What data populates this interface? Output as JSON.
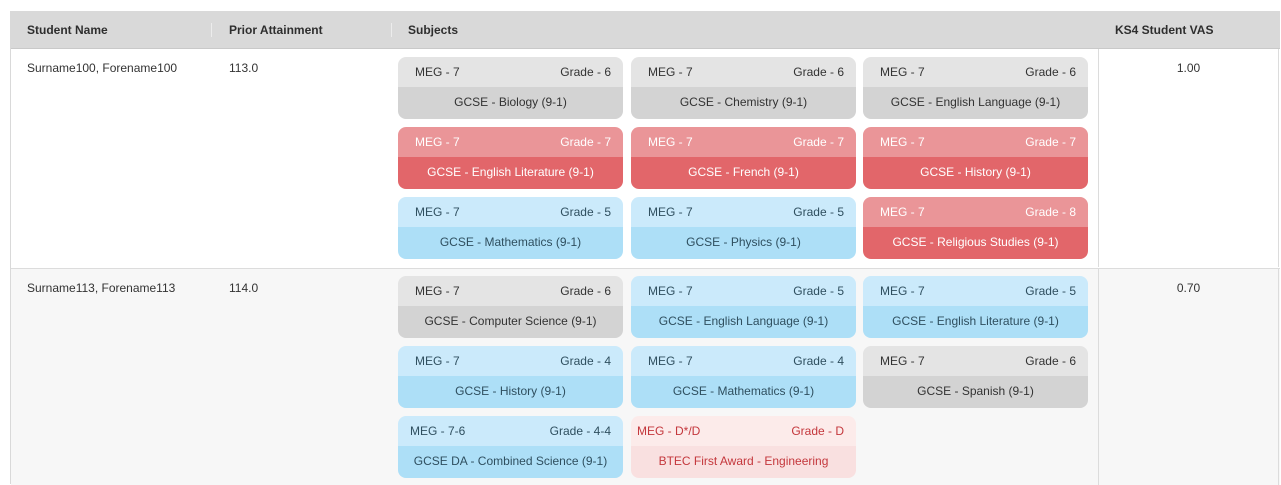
{
  "header": {
    "student_name": "Student Name",
    "prior_attainment": "Prior Attainment",
    "subjects": "Subjects",
    "ks4_vas": "KS4 Student VAS"
  },
  "students": [
    {
      "name": "Surname100, Forename100",
      "prior": "113.0",
      "vas": "1.00",
      "subjects": [
        {
          "meg": "MEG - 7",
          "grade": "Grade - 6",
          "name": "GCSE - Biology (9-1)",
          "status": "grey"
        },
        {
          "meg": "MEG - 7",
          "grade": "Grade - 6",
          "name": "GCSE - Chemistry (9-1)",
          "status": "grey"
        },
        {
          "meg": "MEG - 7",
          "grade": "Grade - 6",
          "name": "GCSE - English Language (9-1)",
          "status": "grey"
        },
        {
          "meg": "MEG - 7",
          "grade": "Grade - 7",
          "name": "GCSE - English Literature (9-1)",
          "status": "red"
        },
        {
          "meg": "MEG - 7",
          "grade": "Grade - 7",
          "name": "GCSE - French (9-1)",
          "status": "red"
        },
        {
          "meg": "MEG - 7",
          "grade": "Grade - 7",
          "name": "GCSE - History (9-1)",
          "status": "red"
        },
        {
          "meg": "MEG - 7",
          "grade": "Grade - 5",
          "name": "GCSE - Mathematics (9-1)",
          "status": "blue"
        },
        {
          "meg": "MEG - 7",
          "grade": "Grade - 5",
          "name": "GCSE - Physics (9-1)",
          "status": "blue"
        },
        {
          "meg": "MEG - 7",
          "grade": "Grade - 8",
          "name": "GCSE - Religious Studies (9-1)",
          "status": "red"
        }
      ]
    },
    {
      "name": "Surname113, Forename113",
      "prior": "114.0",
      "vas": "0.70",
      "subjects": [
        {
          "meg": "MEG - 7",
          "grade": "Grade - 6",
          "name": "GCSE - Computer Science (9-1)",
          "status": "grey"
        },
        {
          "meg": "MEG - 7",
          "grade": "Grade - 5",
          "name": "GCSE - English Language (9-1)",
          "status": "blue"
        },
        {
          "meg": "MEG - 7",
          "grade": "Grade - 5",
          "name": "GCSE - English Literature (9-1)",
          "status": "blue"
        },
        {
          "meg": "MEG - 7",
          "grade": "Grade - 4",
          "name": "GCSE - History (9-1)",
          "status": "blue"
        },
        {
          "meg": "MEG - 7",
          "grade": "Grade - 4",
          "name": "GCSE - Mathematics (9-1)",
          "status": "blue"
        },
        {
          "meg": "MEG - 7",
          "grade": "Grade - 6",
          "name": "GCSE - Spanish (9-1)",
          "status": "grey"
        },
        {
          "meg": "MEG - 7-6",
          "grade": "Grade - 4-4",
          "name": "GCSE DA - Combined Science (9-1)",
          "status": "blue"
        },
        {
          "meg": "MEG - D*/D",
          "grade": "Grade - D",
          "name": "BTEC First Award - Engineering",
          "status": "pink"
        }
      ]
    }
  ],
  "colors": {
    "header_bg": "#d9d9d9",
    "grey_tile": "#d3d3d3",
    "red_tile": "#e2666a",
    "blue_tile": "#addff7",
    "pink_tile": "#f9e0e0"
  }
}
